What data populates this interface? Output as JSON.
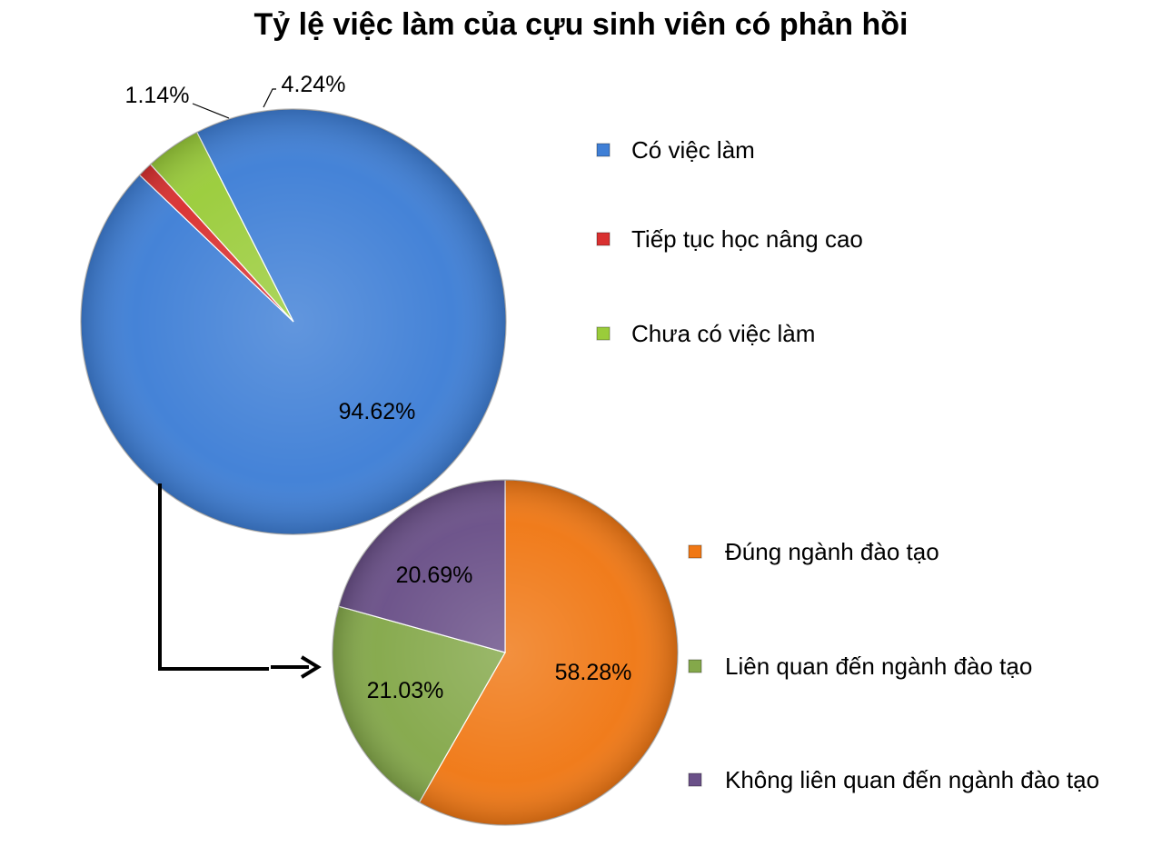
{
  "chart_data": [
    {
      "type": "pie",
      "title": "Tỷ lệ việc làm của cựu sinh viên có phản hồi",
      "slices": [
        {
          "label": "Có việc làm",
          "value": 94.62,
          "value_label": "94.62%",
          "color": "#3f7fd6"
        },
        {
          "label": "Tiếp tục học nâng cao",
          "value": 1.14,
          "value_label": "1.14%",
          "color": "#d93030"
        },
        {
          "label": "Chưa có việc làm",
          "value": 4.24,
          "value_label": "4.24%",
          "color": "#9acc3a"
        }
      ],
      "legend_position": "right"
    },
    {
      "type": "pie",
      "slices": [
        {
          "label": "Đúng ngành đào tạo",
          "value": 58.28,
          "value_label": "58.28%",
          "color": "#f07815"
        },
        {
          "label": "Liên quan đến ngành đào tạo",
          "value": 21.03,
          "value_label": "21.03%",
          "color": "#84a84a"
        },
        {
          "label": "Không liên quan đến ngành đào tạo",
          "value": 20.69,
          "value_label": "20.69%",
          "color": "#6a5088"
        }
      ],
      "legend_position": "right"
    }
  ]
}
